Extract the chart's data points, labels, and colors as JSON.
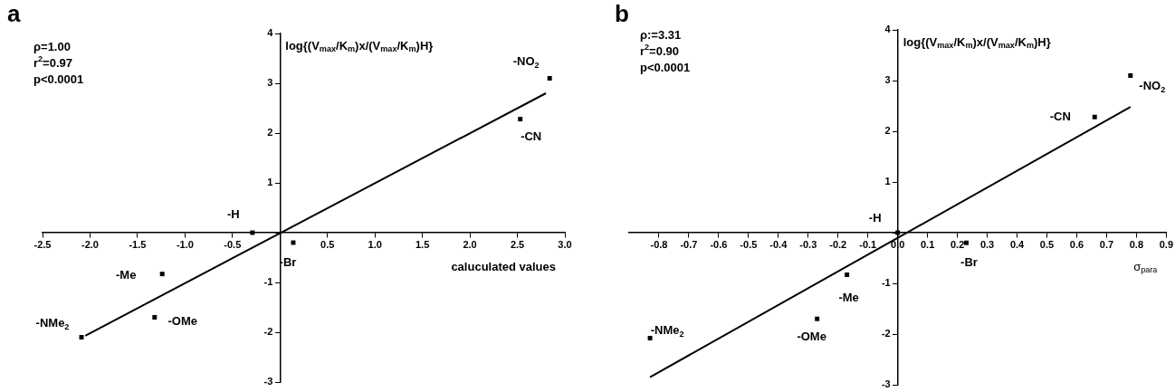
{
  "chart_data": [
    {
      "type": "scatter",
      "title": "a",
      "xlabel": "caluculated values",
      "ylabel": "log{(V$_{max}$/K$_{m}$)x/(V$_{max}$/K$_{m}$)H}",
      "xlim": [
        -2.5,
        3.0
      ],
      "ylim": [
        -3,
        4
      ],
      "xticks": [
        {
          "value": -2.5,
          "label": "-2.5"
        },
        {
          "value": -2,
          "label": "-2.0"
        },
        {
          "value": -1.5,
          "label": "-1.5"
        },
        {
          "value": -1,
          "label": "-1.0"
        },
        {
          "value": -0.5,
          "label": "-0.5"
        },
        {
          "value": 0,
          "label": null
        },
        {
          "value": 0.5,
          "label": "0.5"
        },
        {
          "value": 1,
          "label": "1.0"
        },
        {
          "value": 1.5,
          "label": "1.5"
        },
        {
          "value": 2,
          "label": "2.0"
        },
        {
          "value": 2.5,
          "label": "2.5"
        },
        {
          "value": 3,
          "label": "3.0"
        }
      ],
      "yticks": [
        -3,
        -2,
        -1,
        {
          "value": 0,
          "label": null
        },
        1,
        2,
        3,
        4
      ],
      "legend": false,
      "series": [
        {
          "marker": "square",
          "color": "#000000",
          "x": [
            -2.09,
            -1.32,
            -1.24,
            -0.29,
            0.14,
            2.53,
            2.84
          ],
          "values": [
            -2.1,
            -1.7,
            -0.83,
            0,
            -0.2,
            2.28,
            3.1
          ]
        },
        {
          "type": "line",
          "marker": "none",
          "color": "#000000",
          "x": [
            -2.05,
            2.8
          ],
          "values": [
            -2.07,
            2.8
          ]
        }
      ],
      "annotations": [
        "ρ=1.00",
        "r$^{2}$=0.97",
        "p<0.0001",
        {
          "text": "-NMe$_{2}$",
          "x": -2.09,
          "y": -2.1
        },
        {
          "text": "-OMe",
          "x": -1.32,
          "y": -1.7
        },
        {
          "text": "-Me",
          "x": -1.24,
          "y": -0.83
        },
        {
          "text": "-H",
          "x": -0.29,
          "y": 0
        },
        {
          "text": "-Br",
          "x": 0.14,
          "y": -0.2
        },
        {
          "text": "-CN",
          "x": 2.53,
          "y": 2.28
        },
        {
          "text": "-NO$_{2}$",
          "x": 2.84,
          "y": 3.1
        }
      ]
    },
    {
      "type": "scatter",
      "title": "b",
      "xlabel": "σ$_{para}$",
      "ylabel": "log{(V$_{max}$/K$_{m}$)x/(V$_{max}$/K$_{m}$)H}",
      "xlim": [
        -0.9,
        0.9
      ],
      "ylim": [
        -3,
        4
      ],
      "xticks": [
        {
          "value": -0.8,
          "label": "-0.8"
        },
        {
          "value": -0.7,
          "label": "-0.7"
        },
        {
          "value": -0.6,
          "label": "-0.6"
        },
        {
          "value": -0.5,
          "label": "-0.5"
        },
        {
          "value": -0.4,
          "label": "-0.4"
        },
        {
          "value": -0.3,
          "label": "-0.3"
        },
        {
          "value": -0.2,
          "label": "-0.2"
        },
        {
          "value": -0.1,
          "label": "-0.1"
        },
        {
          "value": 0,
          "label": "0.0"
        },
        {
          "value": 0.1,
          "label": "0.1"
        },
        {
          "value": 0.2,
          "label": "0.2"
        },
        {
          "value": 0.3,
          "label": "0.3"
        },
        {
          "value": 0.4,
          "label": "0.4"
        },
        {
          "value": 0.5,
          "label": "0.5"
        },
        {
          "value": 0.6,
          "label": "0.6"
        },
        {
          "value": 0.7,
          "label": "0.7"
        },
        {
          "value": 0.8,
          "label": "0.8"
        },
        {
          "value": 0.9,
          "label": "0.9"
        }
      ],
      "yticks": [
        -3,
        -2,
        -1,
        {
          "value": 0,
          "label": null
        },
        1,
        2,
        3,
        4
      ],
      "legend": false,
      "series": [
        {
          "marker": "square",
          "color": "#000000",
          "x": [
            -0.83,
            -0.27,
            -0.17,
            0,
            0.23,
            0.66,
            0.78
          ],
          "values": [
            -2.08,
            -1.7,
            -0.83,
            0,
            -0.2,
            2.28,
            3.1
          ]
        },
        {
          "type": "line",
          "marker": "none",
          "color": "#000000",
          "x": [
            -0.83,
            0.78
          ],
          "values": [
            -2.85,
            2.48
          ]
        }
      ],
      "annotations": [
        "ρ:=3.31",
        "r$^{2}$=0.90",
        "p<0.0001",
        {
          "text": "-NMe$_{2}$",
          "x": -0.83,
          "y": -2.08
        },
        {
          "text": "-OMe",
          "x": -0.27,
          "y": -1.7
        },
        {
          "text": "-Me",
          "x": -0.17,
          "y": -0.83
        },
        {
          "text": "-H",
          "x": 0,
          "y": 0
        },
        {
          "text": "-Br",
          "x": 0.23,
          "y": -0.2
        },
        {
          "text": "-CN",
          "x": 0.66,
          "y": 2.28
        },
        {
          "text": "-NO$_{2}$",
          "x": 0.78,
          "y": 3.1
        }
      ]
    }
  ]
}
